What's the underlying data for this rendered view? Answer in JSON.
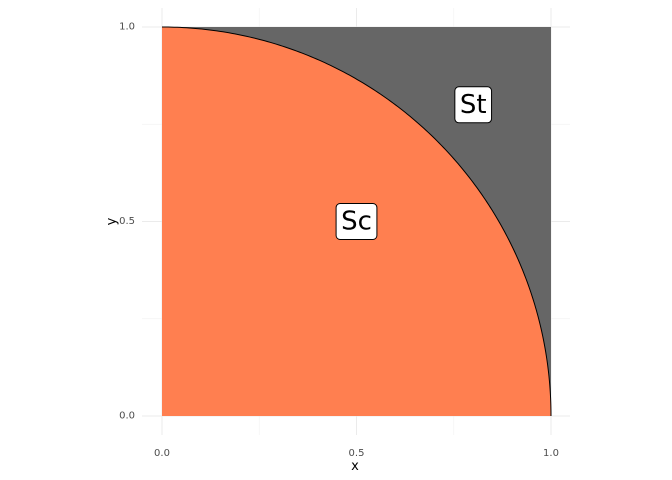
{
  "chart_data": {
    "type": "area",
    "title": "",
    "xlabel": "x",
    "ylabel": "y",
    "xlim": [
      0,
      1
    ],
    "ylim": [
      0,
      1
    ],
    "x_ticks": [
      0.0,
      0.5,
      1.0
    ],
    "x_tick_labels": [
      "0.0",
      "0.5",
      "1.0"
    ],
    "y_ticks": [
      0.0,
      0.5,
      1.0
    ],
    "y_tick_labels": [
      "0.0",
      "0.5",
      "1.0"
    ],
    "grid": true,
    "legend": "none",
    "regions": [
      {
        "name": "St",
        "description_fill": "#666666",
        "boundary": "unit square [0,1]x[0,1] minus quarter circle",
        "label": "St",
        "label_x": 0.8,
        "label_y": 0.8
      },
      {
        "name": "Sc",
        "description_fill": "#ff7f50",
        "boundary": "quarter circle x^2 + y^2 <= 1",
        "label": "Sc",
        "label_x": 0.5,
        "label_y": 0.5
      }
    ]
  },
  "colors": {
    "square": "#666666",
    "circle": "#ff7f50",
    "grid": "#ebebeb",
    "label_box": "#ffffff"
  }
}
